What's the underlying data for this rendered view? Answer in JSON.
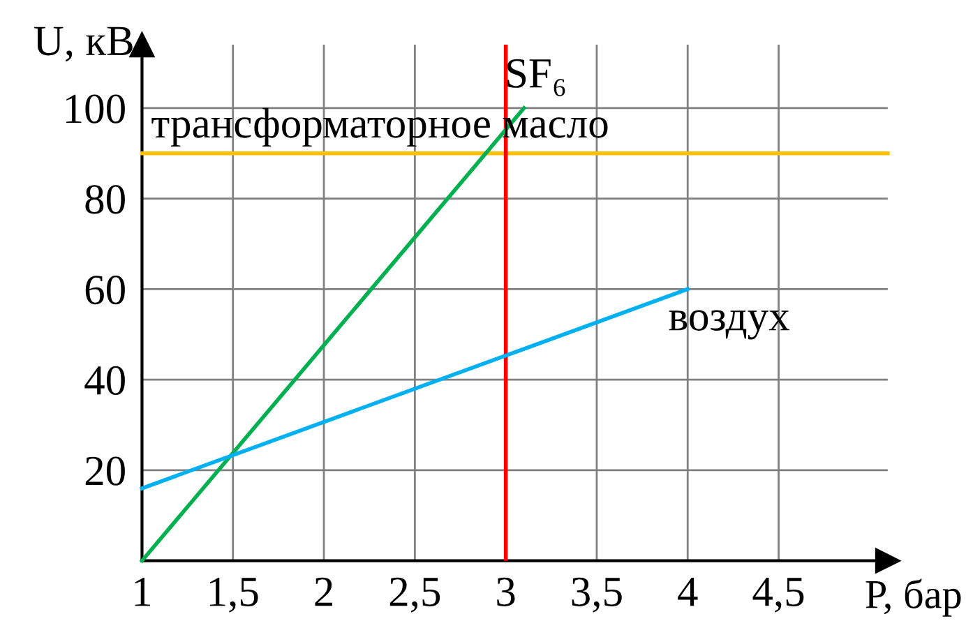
{
  "chart_data": {
    "type": "line",
    "xlabel": "P, бар",
    "ylabel": "U, кВ",
    "series": [
      {
        "name": "SF₆",
        "color": "#00b050",
        "x": [
          1,
          3.1
        ],
        "values": [
          0,
          100
        ]
      },
      {
        "name": "воздух",
        "color": "#00b0f0",
        "x": [
          1,
          4
        ],
        "values": [
          16,
          60
        ]
      }
    ],
    "ref_lines": [
      {
        "axis": "y",
        "value": 90,
        "label": "трансформаторное масло",
        "color": "#ffc000"
      },
      {
        "axis": "x",
        "value": 3,
        "color": "#ff0000"
      }
    ],
    "xlim": [
      1,
      5.1
    ],
    "ylim": [
      0,
      114
    ],
    "xticks": [
      1,
      {
        "value": 1.5,
        "label": "1,5"
      },
      2,
      {
        "value": 2.5,
        "label": "2,5"
      },
      3,
      {
        "value": 3.5,
        "label": "3,5"
      },
      4,
      {
        "value": 4.5,
        "label": "4,5"
      }
    ],
    "yticks": [
      {
        "value": 0,
        "label": null
      },
      20,
      40,
      60,
      80,
      100
    ],
    "grid": true,
    "legend": false,
    "marker": "none",
    "line_style": "solid"
  }
}
